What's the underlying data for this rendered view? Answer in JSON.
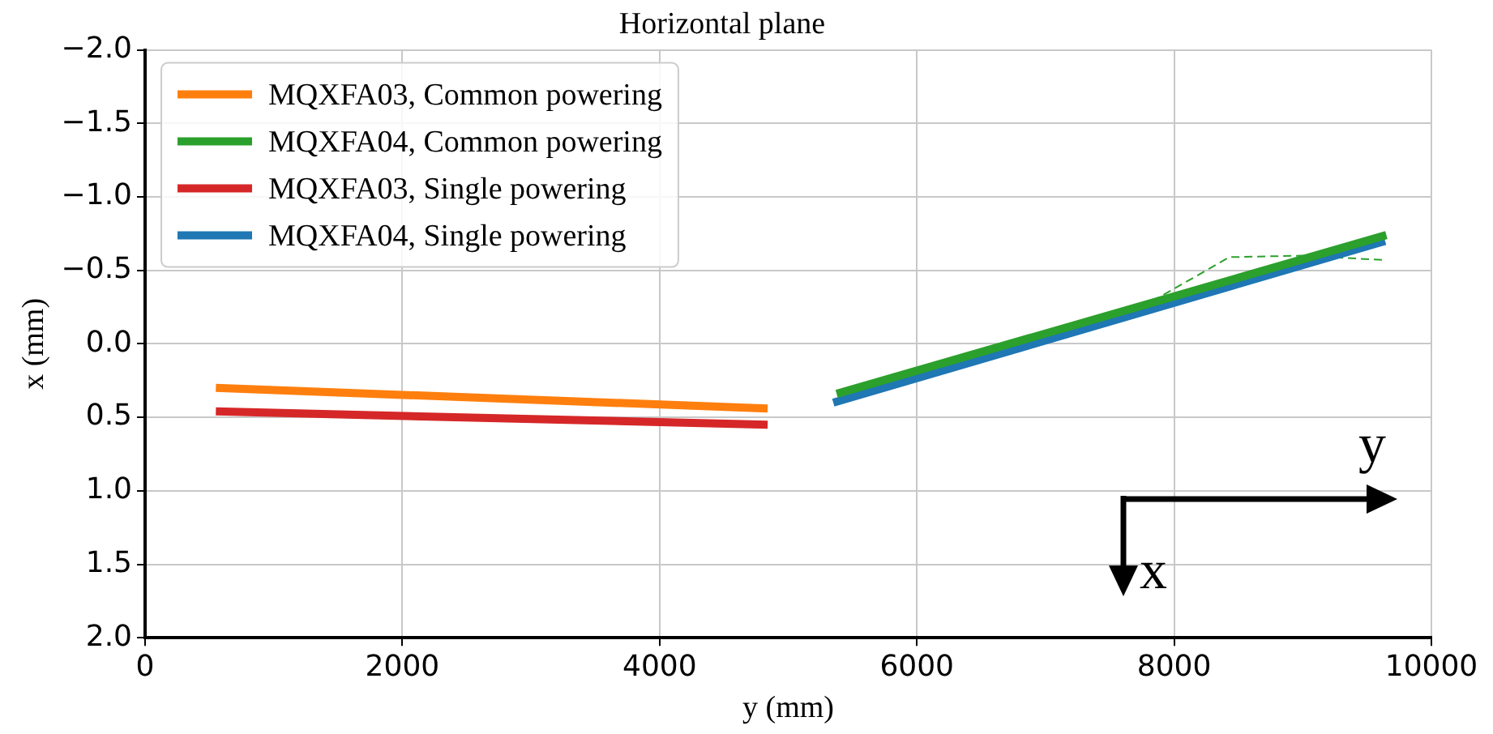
{
  "chart_data": {
    "type": "line",
    "title": "Horizontal plane",
    "xlabel": "y (mm)",
    "ylabel": "x (mm)",
    "xlim": [
      0,
      10000
    ],
    "xticks": [
      0,
      2000,
      4000,
      6000,
      8000,
      10000
    ],
    "ylim": [
      2.0,
      -2.0
    ],
    "yticks": [
      {
        "value": -2.0,
        "label": "−2.0"
      },
      {
        "value": -1.5,
        "label": "−1.5"
      },
      {
        "value": -1.0,
        "label": "−1.0"
      },
      {
        "value": -0.5,
        "label": "−0.5"
      },
      {
        "value": 0.0,
        "label": "0.0"
      },
      {
        "value": 0.5,
        "label": "0.5"
      },
      {
        "value": 1.0,
        "label": "1.0"
      },
      {
        "value": 1.5,
        "label": "1.5"
      },
      {
        "value": 2.0,
        "label": "2.0"
      }
    ],
    "grid": true,
    "legend": "top left",
    "marker": "none",
    "line_style": "solid",
    "series": [
      {
        "name": "MQXFA03, Common powering",
        "color": "#ff7f0e",
        "x": [
          550,
          4840
        ],
        "values": [
          0.3,
          0.44
        ]
      },
      {
        "name": "MQXFA04, Common powering",
        "color": "#2ca02c",
        "x": [
          5376,
          9650
        ],
        "values": [
          0.34,
          -0.74
        ]
      },
      {
        "name": "MQXFA03, Single powering",
        "color": "#d62728",
        "x": [
          550,
          4840
        ],
        "values": [
          0.46,
          0.55
        ]
      },
      {
        "name": "MQXFA04, Single powering",
        "color": "#1f77b4",
        "x": [
          5350,
          9640
        ],
        "values": [
          0.4,
          -0.7
        ]
      },
      {
        "color": "#2ca02c",
        "line_style": "dashed",
        "x": [
          7830,
          8430,
          9000,
          9640
        ],
        "values": [
          -0.29,
          -0.59,
          -0.6,
          -0.57
        ]
      }
    ],
    "annotations": [
      "y",
      "x"
    ]
  }
}
